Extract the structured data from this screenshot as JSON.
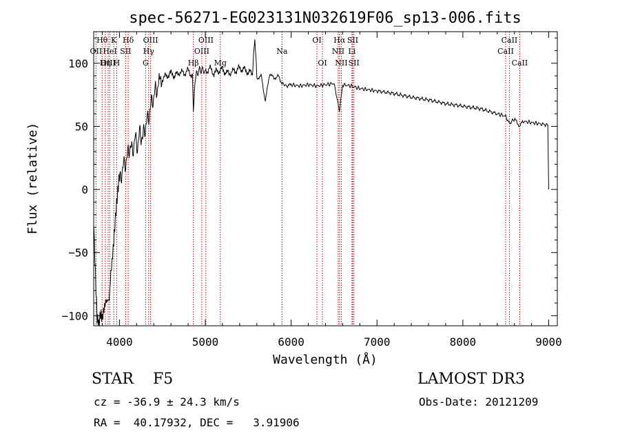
{
  "chart_data": {
    "type": "line",
    "title": "spec-56271-EG023131N032619F06_sp13-006.fits",
    "xlabel": "Wavelength (Å)",
    "ylabel": "Flux (relative)",
    "xlim": [
      3700,
      9100
    ],
    "ylim": [
      -108,
      125
    ],
    "xticks": [
      4000,
      5000,
      6000,
      7000,
      8000,
      9000
    ],
    "yticks": [
      -100,
      -50,
      0,
      50,
      100
    ],
    "grid": false,
    "series": [
      {
        "x": [
          3700,
          3720,
          3740,
          3760,
          3780,
          3800,
          3820,
          3840,
          3860,
          3880,
          3900,
          3920,
          3940,
          3960,
          3980,
          4000,
          4030,
          4060,
          4090,
          4120,
          4150,
          4180,
          4210,
          4240,
          4270,
          4300,
          4330,
          4360,
          4390,
          4420,
          4450,
          4500,
          4550,
          4600,
          4650,
          4700,
          4750,
          4800,
          4850,
          4861,
          4880,
          4920,
          4960,
          5000,
          5050,
          5100,
          5150,
          5200,
          5250,
          5300,
          5350,
          5400,
          5450,
          5500,
          5550,
          5577,
          5600,
          5650,
          5700,
          5750,
          5800,
          5850,
          5893,
          5950,
          6000,
          6100,
          6200,
          6300,
          6400,
          6500,
          6563,
          6600,
          6700,
          6800,
          6900,
          7000,
          7200,
          7400,
          7600,
          7800,
          8000,
          8200,
          8400,
          8500,
          8542,
          8600,
          8662,
          8700,
          8800,
          8900,
          8990,
          9000
        ],
        "y": [
          -20,
          -60,
          -95,
          -105,
          -100,
          -108,
          -102,
          -95,
          -90,
          -85,
          -60,
          -45,
          -30,
          -15,
          -5,
          5,
          15,
          20,
          25,
          35,
          30,
          40,
          35,
          45,
          40,
          50,
          55,
          65,
          72,
          78,
          82,
          88,
          90,
          92,
          90,
          93,
          92,
          94,
          90,
          62,
          88,
          94,
          95,
          93,
          96,
          92,
          94,
          95,
          92,
          93,
          94,
          96,
          95,
          93,
          92,
          122,
          88,
          90,
          70,
          92,
          88,
          90,
          84,
          82,
          83,
          82,
          83,
          82,
          83,
          84,
          62,
          83,
          82,
          80,
          79,
          78,
          76,
          73,
          71,
          68,
          66,
          64,
          60,
          58,
          52,
          56,
          50,
          54,
          53,
          52,
          51,
          0
        ]
      }
    ],
    "spectral_lines": [
      {
        "label": "Hθ",
        "wavelength": 3798,
        "row": 0
      },
      {
        "label": "OII",
        "wavelength": 3727,
        "row": 1
      },
      {
        "label": "OIII",
        "wavelength": 3869,
        "row": 2
      },
      {
        "label": "Hη",
        "wavelength": 3835,
        "row": 2
      },
      {
        "label": "K",
        "wavelength": 3934,
        "row": 0
      },
      {
        "label": "HeI",
        "wavelength": 3889,
        "row": 1
      },
      {
        "label": "SII",
        "wavelength": 4072,
        "row": 1
      },
      {
        "label": "H",
        "wavelength": 3968,
        "row": 2
      },
      {
        "label": "Hδ",
        "wavelength": 4102,
        "row": 0
      },
      {
        "label": "OIII",
        "wavelength": 4363,
        "row": 0
      },
      {
        "label": "Hγ",
        "wavelength": 4340,
        "row": 1
      },
      {
        "label": "G",
        "wavelength": 4305,
        "row": 2
      },
      {
        "label": "Hβ",
        "wavelength": 4861,
        "row": 2
      },
      {
        "label": "OIII",
        "wavelength": 4959,
        "row": 1
      },
      {
        "label": "OIII",
        "wavelength": 5007,
        "row": 0
      },
      {
        "label": "Mg",
        "wavelength": 5175,
        "row": 2
      },
      {
        "label": "Na",
        "wavelength": 5893,
        "row": 1
      },
      {
        "label": "OI",
        "wavelength": 6300,
        "row": 0
      },
      {
        "label": "OI",
        "wavelength": 6364,
        "row": 2
      },
      {
        "label": "Hα",
        "wavelength": 6563,
        "row": 0
      },
      {
        "label": "NII",
        "wavelength": 6548,
        "row": 1
      },
      {
        "label": "NII",
        "wavelength": 6584,
        "row": 2
      },
      {
        "label": "SII",
        "wavelength": 6717,
        "row": 0
      },
      {
        "label": "Li",
        "wavelength": 6708,
        "row": 1
      },
      {
        "label": "SII",
        "wavelength": 6731,
        "row": 2
      },
      {
        "label": "CaII",
        "wavelength": 8542,
        "row": 0
      },
      {
        "label": "CaII",
        "wavelength": 8498,
        "row": 1
      },
      {
        "label": "CaII",
        "wavelength": 8662,
        "row": 2
      }
    ]
  },
  "info": {
    "object": "STAR    F5",
    "survey": "LAMOST DR3",
    "cz": "cz = -36.9 ± 24.3 km/s",
    "obs_date": "Obs-Date: 20121209",
    "coords": "RA =  40.17932, DEC =   3.91906"
  },
  "colors": {
    "spectrum": "#000000",
    "line_markers": "#c00000",
    "axes": "#000000"
  }
}
